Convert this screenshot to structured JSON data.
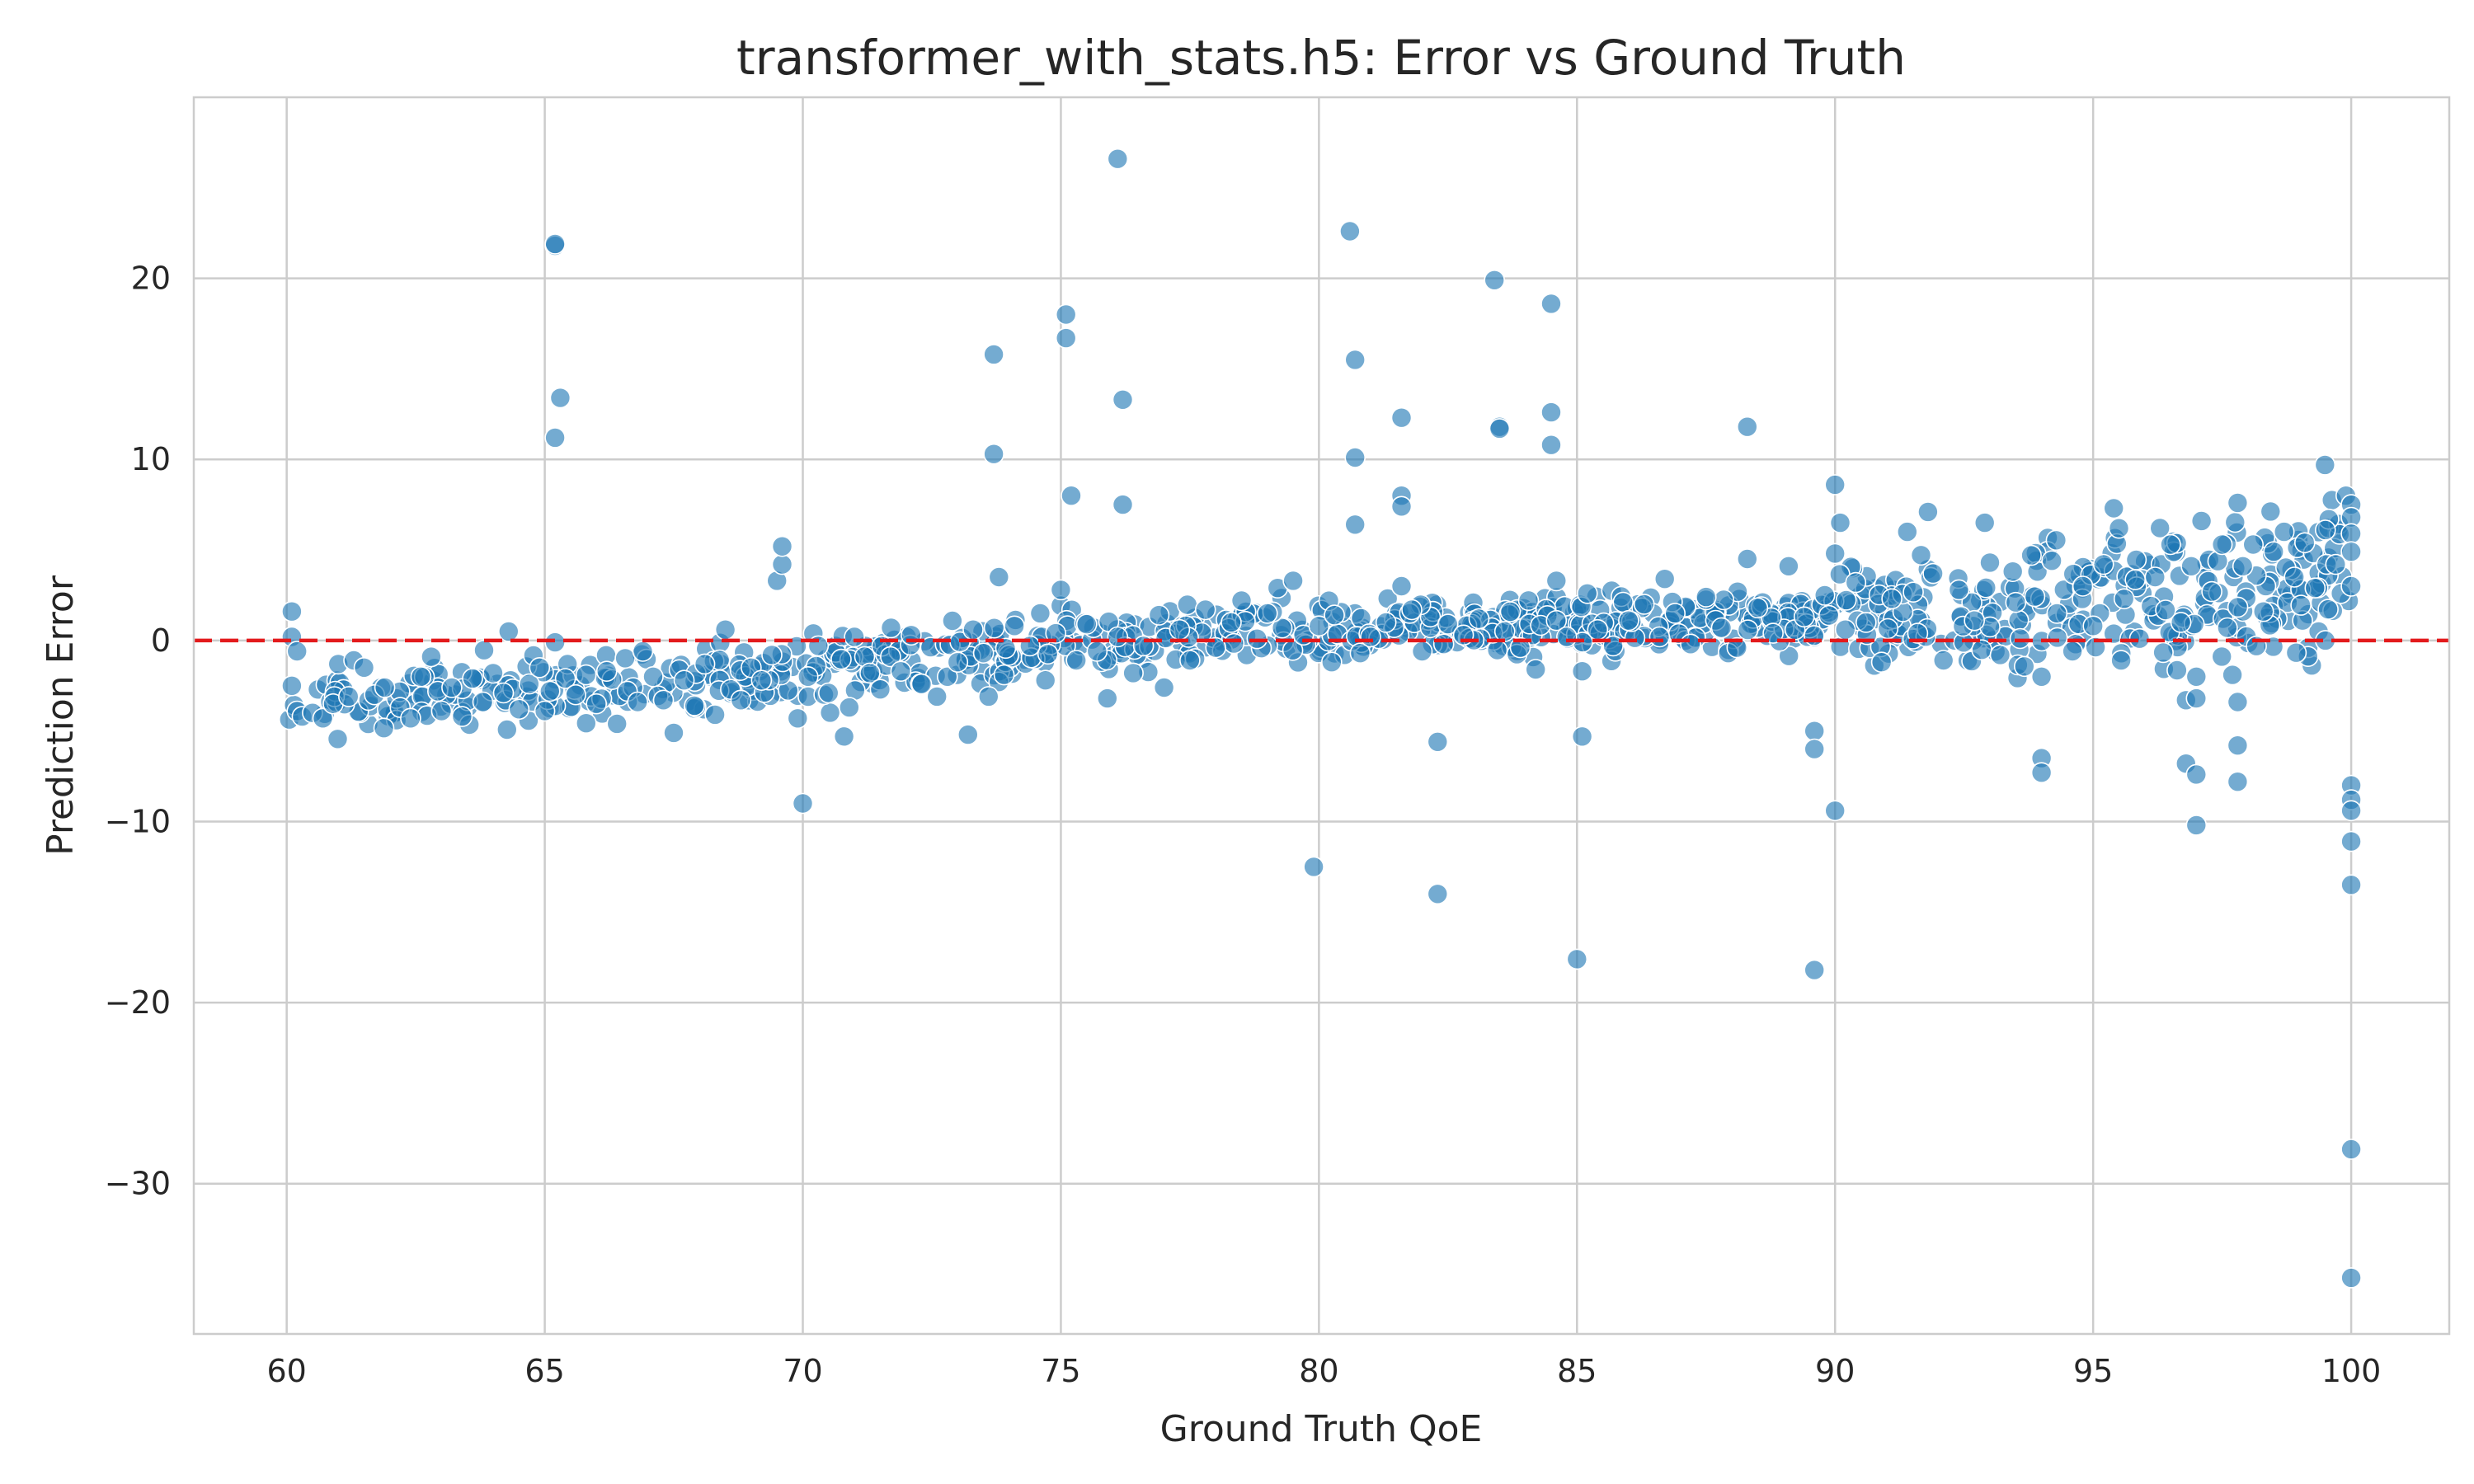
{
  "chart_data": {
    "type": "scatter",
    "title": "transformer_with_stats.h5: Error vs Ground Truth",
    "xlabel": "Ground Truth QoE",
    "ylabel": "Prediction Error",
    "xlim": [
      58.2,
      101.9
    ],
    "ylim": [
      -38.3,
      30.0
    ],
    "xticks": [
      60,
      65,
      70,
      75,
      80,
      85,
      90,
      95,
      100
    ],
    "xtick_labels": [
      "60",
      "65",
      "70",
      "75",
      "80",
      "85",
      "90",
      "95",
      "100"
    ],
    "yticks": [
      -30,
      -20,
      -10,
      0,
      10,
      20
    ],
    "ytick_labels": [
      "−30",
      "−20",
      "−10",
      "0",
      "10",
      "20"
    ],
    "grid": true,
    "reference_line": {
      "y": 0,
      "style": "dashed",
      "color": "#e31a1c"
    },
    "point_color": "#1f77b4",
    "trend": [
      [
        60,
        -3.4
      ],
      [
        63,
        -3.0
      ],
      [
        66,
        -2.5
      ],
      [
        69,
        -2.0
      ],
      [
        72,
        -1.2
      ],
      [
        75,
        0.0
      ],
      [
        78,
        0.5
      ],
      [
        81,
        0.7
      ],
      [
        84,
        0.8
      ],
      [
        87,
        1.0
      ],
      [
        90,
        1.3
      ],
      [
        93,
        1.7
      ],
      [
        96,
        2.3
      ],
      [
        98,
        3.0
      ],
      [
        100,
        4.2
      ]
    ],
    "points": [
      [
        60.1,
        1.6
      ],
      [
        60.1,
        0.2
      ],
      [
        60.2,
        -0.6
      ],
      [
        60.1,
        -2.5
      ],
      [
        60.2,
        -3.9
      ],
      [
        60.3,
        -4.2
      ],
      [
        60.5,
        -4.0
      ],
      [
        60.7,
        -4.3
      ],
      [
        60.9,
        -3.5
      ],
      [
        61.2,
        -3.1
      ],
      [
        61.0,
        -1.3
      ],
      [
        61.3,
        -1.1
      ],
      [
        61.5,
        -1.5
      ],
      [
        61.7,
        -3.0
      ],
      [
        61.9,
        -2.6
      ],
      [
        62.2,
        -3.7
      ],
      [
        62.4,
        -4.3
      ],
      [
        62.6,
        -2.0
      ],
      [
        62.8,
        -0.9
      ],
      [
        63.0,
        -3.9
      ],
      [
        63.2,
        -2.6
      ],
      [
        63.4,
        -4.2
      ],
      [
        63.6,
        -2.1
      ],
      [
        63.8,
        -3.4
      ],
      [
        64.0,
        -1.8
      ],
      [
        64.2,
        -2.9
      ],
      [
        64.3,
        0.5
      ],
      [
        64.5,
        -3.8
      ],
      [
        64.7,
        -2.4
      ],
      [
        64.9,
        -1.5
      ],
      [
        65.0,
        -3.9
      ],
      [
        65.1,
        -2.8
      ],
      [
        65.2,
        21.8
      ],
      [
        65.2,
        21.9
      ],
      [
        65.3,
        13.4
      ],
      [
        65.2,
        11.2
      ],
      [
        65.2,
        -0.1
      ],
      [
        65.4,
        -2.1
      ],
      [
        65.6,
        -3.0
      ],
      [
        65.8,
        -1.9
      ],
      [
        66.0,
        -3.5
      ],
      [
        66.2,
        -1.7
      ],
      [
        66.4,
        -4.6
      ],
      [
        66.6,
        -2.8
      ],
      [
        66.8,
        -3.4
      ],
      [
        66.9,
        -0.6
      ],
      [
        67.1,
        -2.0
      ],
      [
        67.3,
        -3.3
      ],
      [
        67.5,
        -5.1
      ],
      [
        67.7,
        -2.2
      ],
      [
        67.9,
        -3.6
      ],
      [
        68.1,
        -1.3
      ],
      [
        68.3,
        -4.1
      ],
      [
        68.5,
        0.6
      ],
      [
        68.6,
        -2.7
      ],
      [
        68.8,
        -3.3
      ],
      [
        69.0,
        -1.5
      ],
      [
        69.2,
        -2.2
      ],
      [
        69.4,
        -0.8
      ],
      [
        69.5,
        3.3
      ],
      [
        69.6,
        4.2
      ],
      [
        69.6,
        5.2
      ],
      [
        69.9,
        -4.3
      ],
      [
        70.0,
        -9.0
      ],
      [
        70.1,
        -2.0
      ],
      [
        70.3,
        -0.3
      ],
      [
        70.5,
        -2.9
      ],
      [
        70.8,
        -5.3
      ],
      [
        70.9,
        -3.7
      ],
      [
        71.0,
        0.2
      ],
      [
        71.3,
        -1.8
      ],
      [
        71.5,
        -2.7
      ],
      [
        71.7,
        -0.9
      ],
      [
        71.9,
        -1.7
      ],
      [
        72.1,
        0.3
      ],
      [
        72.3,
        -2.4
      ],
      [
        72.6,
        -3.1
      ],
      [
        72.8,
        -2.0
      ],
      [
        73.0,
        -1.2
      ],
      [
        73.2,
        -5.2
      ],
      [
        73.3,
        0.6
      ],
      [
        73.5,
        -0.7
      ],
      [
        73.7,
        15.8
      ],
      [
        73.7,
        10.3
      ],
      [
        73.8,
        3.5
      ],
      [
        73.6,
        -3.1
      ],
      [
        73.9,
        -1.9
      ],
      [
        74.1,
        0.8
      ],
      [
        74.4,
        -0.3
      ],
      [
        74.6,
        1.5
      ],
      [
        74.7,
        -2.2
      ],
      [
        74.9,
        0.4
      ],
      [
        75.0,
        2.8
      ],
      [
        75.1,
        18.0
      ],
      [
        75.1,
        16.7
      ],
      [
        75.2,
        8.0
      ],
      [
        75.3,
        -1.1
      ],
      [
        75.5,
        0.9
      ],
      [
        75.7,
        -0.6
      ],
      [
        75.9,
        -3.2
      ],
      [
        76.1,
        26.6
      ],
      [
        76.2,
        13.3
      ],
      [
        76.2,
        7.5
      ],
      [
        76.1,
        0.2
      ],
      [
        76.4,
        -1.8
      ],
      [
        76.6,
        -0.3
      ],
      [
        76.9,
        1.4
      ],
      [
        77.0,
        -2.6
      ],
      [
        77.3,
        0.6
      ],
      [
        77.5,
        -1.1
      ],
      [
        77.8,
        1.7
      ],
      [
        78.0,
        -0.4
      ],
      [
        78.3,
        1.0
      ],
      [
        78.5,
        2.2
      ],
      [
        78.8,
        0.1
      ],
      [
        79.0,
        1.5
      ],
      [
        79.2,
        2.9
      ],
      [
        79.5,
        3.3
      ],
      [
        79.7,
        0.3
      ],
      [
        79.9,
        -12.5
      ],
      [
        80.0,
        0.8
      ],
      [
        80.3,
        1.4
      ],
      [
        80.6,
        22.6
      ],
      [
        80.7,
        15.5
      ],
      [
        80.7,
        10.1
      ],
      [
        80.7,
        6.4
      ],
      [
        80.8,
        -0.7
      ],
      [
        81.0,
        0.2
      ],
      [
        81.3,
        1.0
      ],
      [
        81.6,
        12.3
      ],
      [
        81.6,
        8.0
      ],
      [
        81.6,
        7.4
      ],
      [
        81.6,
        3.0
      ],
      [
        81.8,
        1.7
      ],
      [
        82.0,
        -0.6
      ],
      [
        82.3,
        -5.6
      ],
      [
        82.3,
        -14.0
      ],
      [
        82.5,
        0.9
      ],
      [
        82.8,
        0.3
      ],
      [
        83.1,
        1.2
      ],
      [
        83.4,
        19.9
      ],
      [
        83.5,
        11.8
      ],
      [
        83.5,
        11.7
      ],
      [
        83.6,
        0.5
      ],
      [
        83.9,
        -0.4
      ],
      [
        84.2,
        -1.6
      ],
      [
        84.5,
        18.6
      ],
      [
        84.5,
        12.6
      ],
      [
        84.5,
        10.8
      ],
      [
        84.6,
        3.3
      ],
      [
        84.6,
        1.1
      ],
      [
        84.8,
        0.2
      ],
      [
        85.0,
        -17.6
      ],
      [
        85.1,
        -5.3
      ],
      [
        85.1,
        -1.7
      ],
      [
        85.2,
        2.6
      ],
      [
        85.4,
        0.6
      ],
      [
        85.7,
        -0.3
      ],
      [
        86.0,
        1.1
      ],
      [
        86.3,
        2.0
      ],
      [
        86.6,
        0.2
      ],
      [
        86.7,
        3.4
      ],
      [
        86.9,
        1.5
      ],
      [
        87.2,
        -0.2
      ],
      [
        87.5,
        2.4
      ],
      [
        87.8,
        0.7
      ],
      [
        88.1,
        -0.4
      ],
      [
        88.3,
        11.8
      ],
      [
        88.3,
        4.5
      ],
      [
        88.5,
        1.8
      ],
      [
        88.8,
        0.4
      ],
      [
        89.1,
        4.1
      ],
      [
        89.4,
        1.3
      ],
      [
        89.6,
        -5.0
      ],
      [
        89.6,
        -6.0
      ],
      [
        89.6,
        -18.2
      ],
      [
        89.8,
        2.5
      ],
      [
        90.0,
        8.6
      ],
      [
        90.1,
        6.5
      ],
      [
        90.0,
        4.8
      ],
      [
        90.0,
        -9.4
      ],
      [
        90.2,
        0.6
      ],
      [
        90.4,
        3.2
      ],
      [
        90.6,
        1.0
      ],
      [
        90.9,
        -1.2
      ],
      [
        91.1,
        2.3
      ],
      [
        91.4,
        6.0
      ],
      [
        91.6,
        0.4
      ],
      [
        91.8,
        7.1
      ],
      [
        91.9,
        3.7
      ],
      [
        92.1,
        -1.1
      ],
      [
        92.4,
        2.8
      ],
      [
        92.7,
        1.1
      ],
      [
        92.9,
        6.5
      ],
      [
        93.0,
        4.3
      ],
      [
        93.2,
        -0.8
      ],
      [
        93.5,
        2.1
      ],
      [
        93.8,
        4.7
      ],
      [
        94.0,
        -6.5
      ],
      [
        94.0,
        -7.3
      ],
      [
        94.0,
        -2.0
      ],
      [
        94.2,
        4.4
      ],
      [
        94.3,
        1.5
      ],
      [
        94.6,
        -0.6
      ],
      [
        94.8,
        3.0
      ],
      [
        95.0,
        0.8
      ],
      [
        95.2,
        4.2
      ],
      [
        95.4,
        7.3
      ],
      [
        95.5,
        6.2
      ],
      [
        95.6,
        2.3
      ],
      [
        95.9,
        0.1
      ],
      [
        96.2,
        3.5
      ],
      [
        96.5,
        5.3
      ],
      [
        96.7,
        1.0
      ],
      [
        96.8,
        -3.3
      ],
      [
        96.8,
        -6.8
      ],
      [
        96.9,
        4.1
      ],
      [
        97.0,
        -2.0
      ],
      [
        97.0,
        -3.2
      ],
      [
        97.0,
        -7.4
      ],
      [
        97.0,
        -10.2
      ],
      [
        97.1,
        6.6
      ],
      [
        97.3,
        2.7
      ],
      [
        97.5,
        5.3
      ],
      [
        97.6,
        0.7
      ],
      [
        97.7,
        -1.9
      ],
      [
        97.8,
        -3.4
      ],
      [
        97.8,
        -5.8
      ],
      [
        97.8,
        -7.8
      ],
      [
        97.8,
        7.6
      ],
      [
        97.9,
        4.1
      ],
      [
        98.1,
        5.3
      ],
      [
        98.3,
        1.6
      ],
      [
        98.5,
        4.9
      ],
      [
        98.7,
        6.0
      ],
      [
        98.9,
        3.5
      ],
      [
        99.1,
        5.4
      ],
      [
        99.3,
        2.9
      ],
      [
        99.5,
        6.1
      ],
      [
        99.5,
        0.0
      ],
      [
        99.7,
        4.2
      ],
      [
        99.8,
        2.6
      ],
      [
        99.9,
        8.0
      ],
      [
        100.0,
        7.5
      ],
      [
        100.0,
        6.8
      ],
      [
        100.0,
        5.9
      ],
      [
        100.0,
        4.9
      ],
      [
        100.0,
        3.0
      ],
      [
        100.0,
        -8.0
      ],
      [
        100.0,
        -8.8
      ],
      [
        100.0,
        -9.4
      ],
      [
        100.0,
        -11.1
      ],
      [
        100.0,
        -13.5
      ],
      [
        100.0,
        -28.1
      ],
      [
        100.0,
        -35.2
      ]
    ]
  }
}
